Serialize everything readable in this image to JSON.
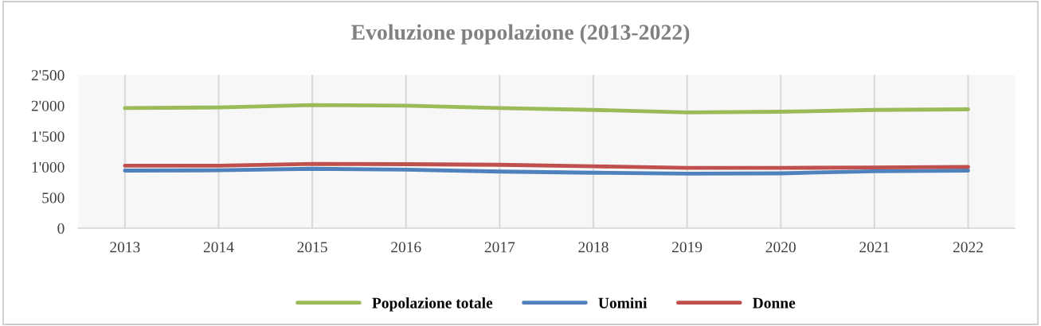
{
  "chart_data": {
    "type": "line",
    "title": "Evoluzione popolazione (2013-2022)",
    "categories": [
      "2013",
      "2014",
      "2015",
      "2016",
      "2017",
      "2018",
      "2019",
      "2020",
      "2021",
      "2022"
    ],
    "series": [
      {
        "name": "Popolazione totale",
        "color": "#9bbb59",
        "values": [
          1960,
          1970,
          2010,
          2000,
          1960,
          1930,
          1890,
          1900,
          1930,
          1940
        ]
      },
      {
        "name": "Uomini",
        "color": "#4f81bd",
        "values": [
          940,
          945,
          970,
          955,
          925,
          905,
          890,
          895,
          930,
          940
        ]
      },
      {
        "name": "Donne",
        "color": "#c0504d",
        "values": [
          1020,
          1020,
          1050,
          1045,
          1035,
          1010,
          985,
          985,
          990,
          1000
        ]
      }
    ],
    "ylim": [
      0,
      2500
    ],
    "yticks": [
      0,
      500,
      {
        "value": 1000,
        "label": "1'000"
      },
      {
        "value": 1500,
        "label": "1'500"
      },
      {
        "value": 2000,
        "label": "2'000"
      },
      {
        "value": 2500,
        "label": "2'500"
      }
    ],
    "grid": "x",
    "legend": "bottom",
    "marker": "none",
    "line_style": "solid"
  }
}
